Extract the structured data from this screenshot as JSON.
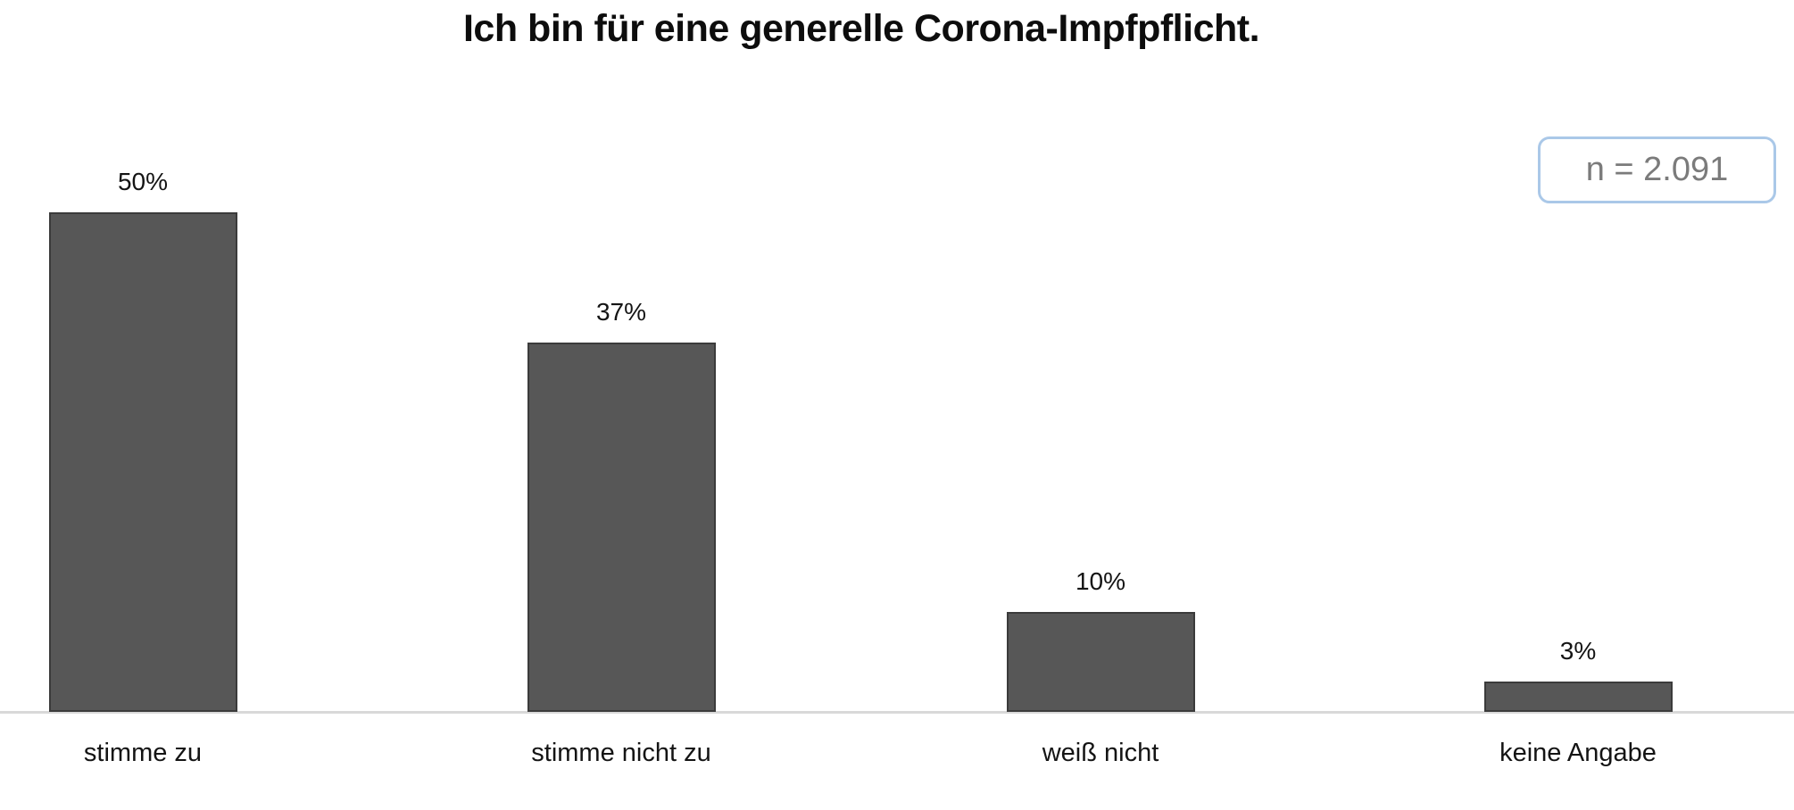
{
  "chart": {
    "title": "Ich bin für eine generelle Corona-Impfpflicht.",
    "sample_badge_text": "n = 2.091",
    "colors": {
      "bar_fill": "#575757",
      "bar_border": "#3b3b3b",
      "axis_line": "#d9d9d9",
      "badge_border": "#aac8e8",
      "badge_text": "#7b7b7b",
      "title_text": "#0d0d0d",
      "label_text": "#141414"
    }
  },
  "chart_data": {
    "type": "bar",
    "title": "Ich bin für eine generelle Corona-Impfpflicht.",
    "categories": [
      "stimme zu",
      "stimme nicht zu",
      "weiß nicht",
      "keine Angabe"
    ],
    "values": [
      50,
      37,
      10,
      3
    ],
    "value_labels": [
      "50%",
      "37%",
      "10%",
      "3%"
    ],
    "annotation": "n = 2.091",
    "xlabel": "",
    "ylabel": "",
    "ylim": [
      0,
      60
    ],
    "unit": "percent",
    "grid": false,
    "y_axis_visible": false,
    "legend_position": "none",
    "annotation_position": "top-right"
  }
}
